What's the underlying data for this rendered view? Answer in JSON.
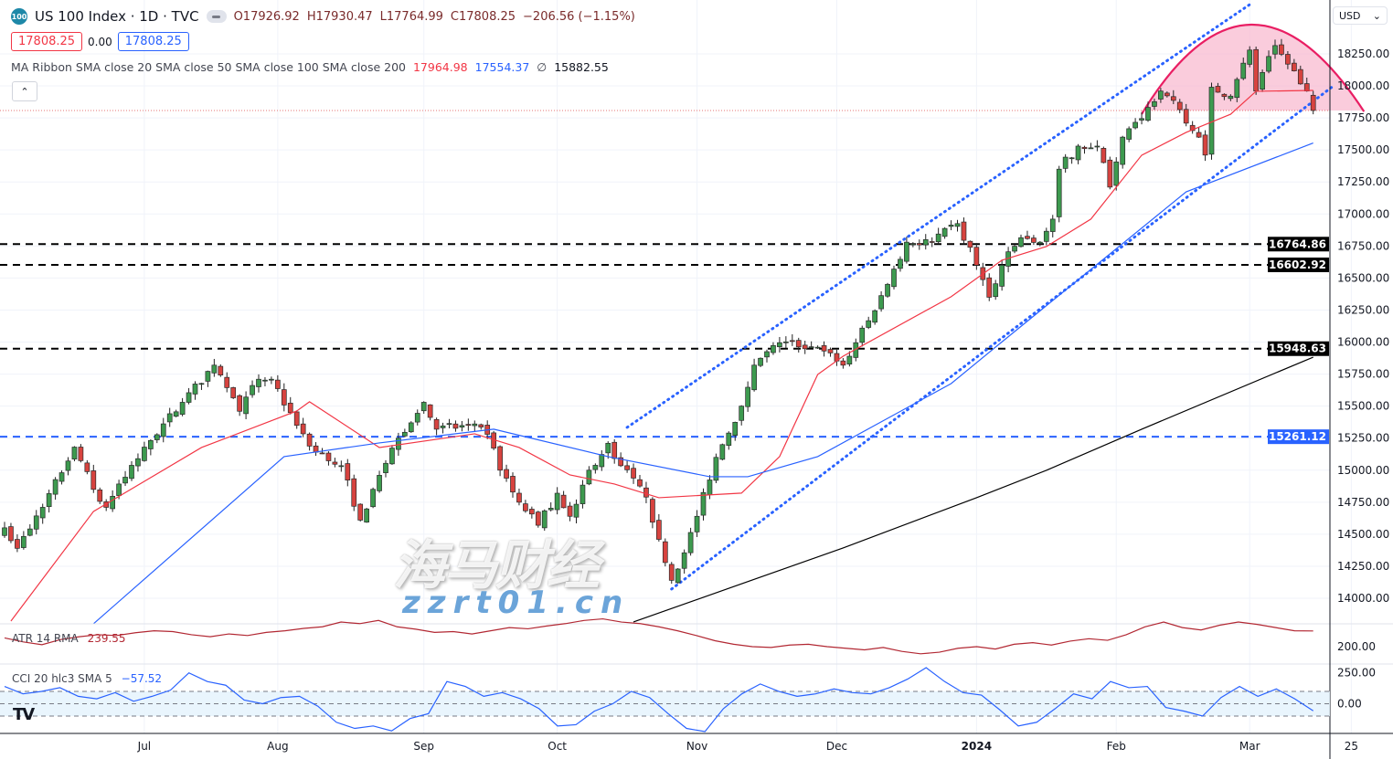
{
  "header": {
    "symbol_badge": "100",
    "title": "US 100 Index · 1D · TVC",
    "ohlc": {
      "open": "O17926.92",
      "high": "H17930.47",
      "low": "L17764.99",
      "close": "C17808.25",
      "change": "−206.56 (−1.15%)"
    },
    "sell_price": "17808.25",
    "spread": "0.00",
    "buy_price": "17808.25",
    "currency": "USD"
  },
  "ma_ribbon": {
    "label": "MA Ribbon SMA close 20 SMA close 50 SMA close 100 SMA close 200",
    "sma20": "17964.98",
    "sma50": "17554.37",
    "sma100": "∅",
    "sma200": "15882.55",
    "colors": {
      "sma20": "#f23645",
      "sma50": "#2962ff",
      "sma200": "#000000"
    }
  },
  "atr": {
    "label": "ATR 14 RMA",
    "value": "239.55",
    "color": "#b22833"
  },
  "cci": {
    "label": "CCI 20 hlc3 SMA 5",
    "value": "−57.52",
    "color": "#2962ff"
  },
  "watermark": {
    "text1": "海马财经",
    "text2": "zzrt01.cn"
  },
  "chart_data": {
    "type": "candlestick",
    "title": "US 100 Index · 1D · TVC",
    "y_ticks": [
      "18250.00",
      "18000.00",
      "17750.00",
      "17500.00",
      "17250.00",
      "17000.00",
      "16750.00",
      "16500.00",
      "16250.00",
      "16000.00",
      "15750.00",
      "15500.00",
      "15250.00",
      "15000.00",
      "14750.00",
      "14500.00",
      "14250.00",
      "14000.00"
    ],
    "ylim": [
      13850,
      18600
    ],
    "x_ticks": [
      {
        "label": "Jul",
        "date": "2023-07-03"
      },
      {
        "label": "Aug",
        "date": "2023-08-01"
      },
      {
        "label": "Sep",
        "date": "2023-09-01"
      },
      {
        "label": "Oct",
        "date": "2023-10-02"
      },
      {
        "label": "Nov",
        "date": "2023-11-01"
      },
      {
        "label": "Dec",
        "date": "2023-12-01"
      },
      {
        "label": "2024",
        "date": "2024-01-02"
      },
      {
        "label": "Feb",
        "date": "2024-02-01"
      },
      {
        "label": "Mar",
        "date": "2024-03-01"
      },
      {
        "label": "25",
        "date": "2024-03-25"
      }
    ],
    "last_price": 17808.25,
    "close_path": [
      [
        "2023-06-01",
        14550
      ],
      [
        "2023-06-05",
        14390
      ],
      [
        "2023-06-09",
        14710
      ],
      [
        "2023-06-16",
        15180
      ],
      [
        "2023-06-21",
        14850
      ],
      [
        "2023-06-23",
        14710
      ],
      [
        "2023-07-03",
        15180
      ],
      [
        "2023-07-11",
        15530
      ],
      [
        "2023-07-18",
        15820
      ],
      [
        "2023-07-24",
        15460
      ],
      [
        "2023-07-27",
        15710
      ],
      [
        "2023-07-31",
        15710
      ],
      [
        "2023-08-04",
        15350
      ],
      [
        "2023-08-09",
        15140
      ],
      [
        "2023-08-15",
        15035
      ],
      [
        "2023-08-18",
        14610
      ],
      [
        "2023-08-23",
        14960
      ],
      [
        "2023-08-28",
        15250
      ],
      [
        "2023-09-01",
        15530
      ],
      [
        "2023-09-05",
        15320
      ],
      [
        "2023-09-12",
        15350
      ],
      [
        "2023-09-15",
        15280
      ],
      [
        "2023-09-19",
        15000
      ],
      [
        "2023-09-22",
        14750
      ],
      [
        "2023-09-27",
        14570
      ],
      [
        "2023-10-02",
        14820
      ],
      [
        "2023-10-04",
        14640
      ],
      [
        "2023-10-09",
        15000
      ],
      [
        "2023-10-12",
        15210
      ],
      [
        "2023-10-16",
        15035
      ],
      [
        "2023-10-20",
        14790
      ],
      [
        "2023-10-24",
        14460
      ],
      [
        "2023-10-26",
        14140
      ],
      [
        "2023-10-30",
        14355
      ],
      [
        "2023-11-01",
        14640
      ],
      [
        "2023-11-06",
        15100
      ],
      [
        "2023-11-10",
        15500
      ],
      [
        "2023-11-14",
        15820
      ],
      [
        "2023-11-20",
        15995
      ],
      [
        "2023-11-28",
        15960
      ],
      [
        "2023-12-04",
        15820
      ],
      [
        "2023-12-06",
        15995
      ],
      [
        "2023-12-11",
        16245
      ],
      [
        "2023-12-14",
        16570
      ],
      [
        "2023-12-18",
        16780
      ],
      [
        "2023-12-22",
        16780
      ],
      [
        "2023-12-28",
        16925
      ],
      [
        "2024-01-02",
        16600
      ],
      [
        "2024-01-04",
        16350
      ],
      [
        "2024-01-08",
        16600
      ],
      [
        "2024-01-11",
        16815
      ],
      [
        "2024-01-16",
        16780
      ],
      [
        "2024-01-18",
        16960
      ],
      [
        "2024-01-19",
        17350
      ],
      [
        "2024-01-24",
        17530
      ],
      [
        "2024-01-29",
        17530
      ],
      [
        "2024-01-31",
        17210
      ],
      [
        "2024-02-02",
        17600
      ],
      [
        "2024-02-07",
        17745
      ],
      [
        "2024-02-12",
        17960
      ],
      [
        "2024-02-15",
        17815
      ],
      [
        "2024-02-20",
        17600
      ],
      [
        "2024-02-21",
        17460
      ],
      [
        "2024-02-22",
        17990
      ],
      [
        "2024-02-27",
        17920
      ],
      [
        "2024-03-01",
        18280
      ],
      [
        "2024-03-04",
        17960
      ],
      [
        "2024-03-07",
        18315
      ],
      [
        "2024-03-11",
        18170
      ],
      [
        "2024-03-14",
        17960
      ],
      [
        "2024-03-15",
        17808.25
      ]
    ],
    "series": [
      {
        "name": "SMA close 20",
        "color": "#f23645",
        "points": [
          [
            "2023-06-02",
            13822
          ],
          [
            "2023-06-21",
            14678
          ],
          [
            "2023-07-14",
            15177
          ],
          [
            "2023-08-04",
            15462
          ],
          [
            "2023-08-08",
            15534
          ],
          [
            "2023-08-23",
            15177
          ],
          [
            "2023-09-13",
            15284
          ],
          [
            "2023-09-22",
            15177
          ],
          [
            "2023-10-04",
            14963
          ],
          [
            "2023-10-13",
            14892
          ],
          [
            "2023-10-24",
            14785
          ],
          [
            "2023-11-10",
            14821
          ],
          [
            "2023-11-20",
            15106
          ],
          [
            "2023-11-28",
            15747
          ],
          [
            "2023-12-04",
            15890
          ],
          [
            "2023-12-27",
            16354
          ],
          [
            "2024-01-08",
            16639
          ],
          [
            "2024-01-17",
            16746
          ],
          [
            "2024-01-26",
            16960
          ],
          [
            "2024-02-07",
            17459
          ],
          [
            "2024-02-16",
            17637
          ],
          [
            "2024-02-27",
            17779
          ],
          [
            "2024-03-04",
            17958
          ],
          [
            "2024-03-15",
            17964.98
          ]
        ]
      },
      {
        "name": "SMA close 50",
        "color": "#2962ff",
        "points": [
          [
            "2023-06-21",
            13801
          ],
          [
            "2023-08-02",
            15106
          ],
          [
            "2023-08-23",
            15213
          ],
          [
            "2023-09-18",
            15320
          ],
          [
            "2023-10-12",
            15106
          ],
          [
            "2023-11-03",
            14949
          ],
          [
            "2023-11-13",
            14949
          ],
          [
            "2023-11-28",
            15106
          ],
          [
            "2023-12-27",
            15676
          ],
          [
            "2024-01-05",
            15961
          ],
          [
            "2024-01-26",
            16567
          ],
          [
            "2024-02-16",
            17173
          ],
          [
            "2024-03-15",
            17554.37
          ]
        ]
      },
      {
        "name": "SMA close 200",
        "color": "#000000",
        "points": [
          [
            "2023-10-18",
            13815
          ],
          [
            "2023-12-04",
            14393
          ],
          [
            "2024-01-02",
            14785
          ],
          [
            "2024-01-17",
            14999
          ],
          [
            "2024-02-07",
            15320
          ],
          [
            "2024-03-15",
            15882.55
          ]
        ]
      }
    ],
    "horizontal_levels": [
      {
        "value": 16764.86,
        "label": "16764.86",
        "color": "#000000"
      },
      {
        "value": 16602.92,
        "label": "16602.92",
        "color": "#000000"
      },
      {
        "value": 15948.63,
        "label": "15948.63",
        "color": "#000000"
      },
      {
        "value": 15261.12,
        "label": "15261.12",
        "color": "#2962ff"
      }
    ],
    "trend_channel": {
      "color": "#2962ff",
      "upper": [
        [
          "2023-10-17",
          15334
        ],
        [
          "2024-03-01",
          18635
        ]
      ],
      "lower": [
        [
          "2023-10-26",
          14072
        ],
        [
          "2024-03-20",
          17993
        ]
      ]
    },
    "rounding_top": {
      "color": "#e91e63",
      "fill": "#f8bbd0",
      "start": [
        "2024-02-07",
        17780
      ],
      "peak": [
        "2024-03-01",
        18478
      ],
      "end": [
        "2024-03-27",
        17800
      ],
      "base": 17808.25
    },
    "atr_pane": {
      "y_ticks": [
        "200.00"
      ],
      "values": [
        222,
        212,
        205,
        218,
        225,
        230,
        228,
        235,
        240,
        238,
        230,
        225,
        232,
        228,
        236,
        240,
        246,
        250,
        262,
        258,
        266,
        250,
        244,
        236,
        238,
        232,
        240,
        248,
        245,
        252,
        258,
        266,
        270,
        262,
        258,
        250,
        240,
        228,
        215,
        206,
        200,
        198,
        204,
        206,
        200,
        196,
        192,
        198,
        188,
        182,
        186,
        196,
        200,
        194,
        206,
        210,
        204,
        214,
        220,
        216,
        230,
        250,
        262,
        248,
        242,
        254,
        262,
        256,
        248,
        240,
        239.55
      ]
    },
    "cci_pane": {
      "y_ticks": [
        "250.00",
        "0.00"
      ],
      "bands": [
        100,
        0,
        -100
      ],
      "values": [
        140,
        80,
        100,
        130,
        60,
        40,
        90,
        20,
        60,
        110,
        250,
        180,
        150,
        30,
        0,
        50,
        60,
        -20,
        -150,
        -200,
        -180,
        -220,
        -120,
        -80,
        180,
        140,
        60,
        90,
        40,
        -40,
        -180,
        -170,
        -60,
        0,
        100,
        50,
        -80,
        -200,
        -230,
        -40,
        80,
        160,
        100,
        60,
        80,
        120,
        90,
        80,
        130,
        200,
        300,
        180,
        90,
        70,
        -50,
        -180,
        -150,
        -40,
        80,
        40,
        180,
        130,
        140,
        -30,
        -60,
        -100,
        50,
        140,
        60,
        120,
        40,
        -57.52
      ]
    }
  }
}
